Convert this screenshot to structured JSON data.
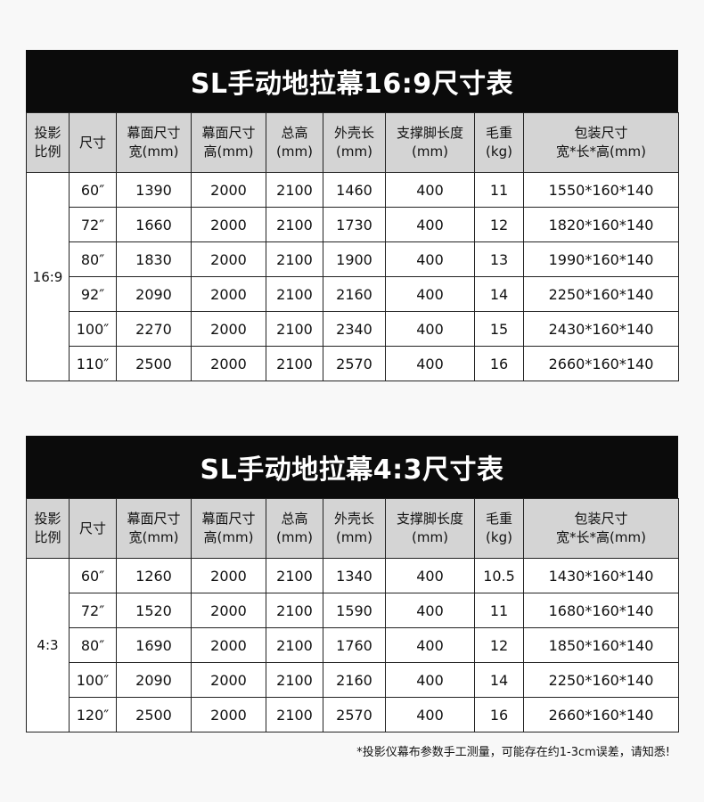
{
  "headers": [
    "投影\n比例",
    "尺寸",
    "幕面尺寸\n宽(mm)",
    "幕面尺寸\n高(mm)",
    "总高\n(mm)",
    "外壳长\n(mm)",
    "支撑脚长度\n(mm)",
    "毛重\n(kg)",
    "包装尺寸\n宽*长*高(mm)"
  ],
  "tables": [
    {
      "title": "SL手动地拉幕16:9尺寸表",
      "ratio": "16:9",
      "rows": [
        [
          "60″",
          "1390",
          "2000",
          "2100",
          "1460",
          "400",
          "11",
          "1550*160*140"
        ],
        [
          "72″",
          "1660",
          "2000",
          "2100",
          "1730",
          "400",
          "12",
          "1820*160*140"
        ],
        [
          "80″",
          "1830",
          "2000",
          "2100",
          "1900",
          "400",
          "13",
          "1990*160*140"
        ],
        [
          "92″",
          "2090",
          "2000",
          "2100",
          "2160",
          "400",
          "14",
          "2250*160*140"
        ],
        [
          "100″",
          "2270",
          "2000",
          "2100",
          "2340",
          "400",
          "15",
          "2430*160*140"
        ],
        [
          "110″",
          "2500",
          "2000",
          "2100",
          "2570",
          "400",
          "16",
          "2660*160*140"
        ]
      ]
    },
    {
      "title": "SL手动地拉幕4:3尺寸表",
      "ratio": "4:3",
      "rows": [
        [
          "60″",
          "1260",
          "2000",
          "2100",
          "1340",
          "400",
          "10.5",
          "1430*160*140"
        ],
        [
          "72″",
          "1520",
          "2000",
          "2100",
          "1590",
          "400",
          "11",
          "1680*160*140"
        ],
        [
          "80″",
          "1690",
          "2000",
          "2100",
          "1760",
          "400",
          "12",
          "1850*160*140"
        ],
        [
          "100″",
          "2090",
          "2000",
          "2100",
          "2160",
          "400",
          "14",
          "2250*160*140"
        ],
        [
          "120″",
          "2500",
          "2000",
          "2100",
          "2570",
          "400",
          "16",
          "2660*160*140"
        ]
      ]
    }
  ],
  "footnote": "*投影仪幕布参数手工测量，可能存在约1-3cm误差，请知悉!"
}
